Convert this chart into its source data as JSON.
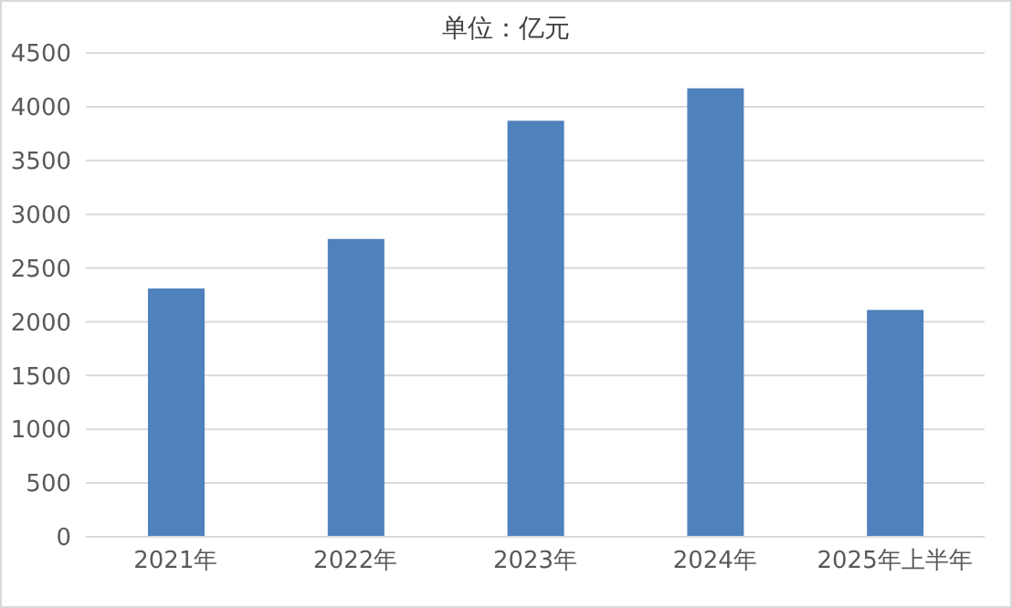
{
  "chart_data": {
    "type": "bar",
    "title": "单位：亿元",
    "categories": [
      "2021年",
      "2022年",
      "2023年",
      "2024年",
      "2025年上半年"
    ],
    "values": [
      2310,
      2770,
      3870,
      4170,
      2110
    ],
    "color": "#4f81bd",
    "ylim": [
      0,
      4500
    ],
    "yticks": [
      0,
      500,
      1000,
      1500,
      2000,
      2500,
      3000,
      3500,
      4000,
      4500
    ],
    "grid": "y"
  }
}
